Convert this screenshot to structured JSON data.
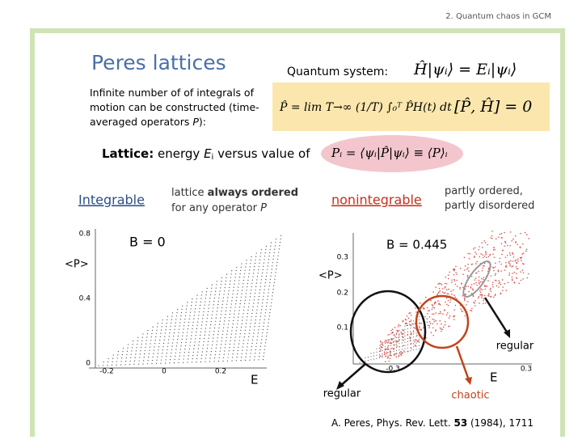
{
  "header": "2. Quantum chaos in GCM",
  "title": "Peres lattices",
  "quantum_system": {
    "label": "Quantum system:",
    "formula": "Ĥ|ψᵢ⟩ = Eᵢ|ψᵢ⟩"
  },
  "integrals": {
    "text": "Infinite number of of integrals of motion can be constructed (time-averaged operators",
    "operator": "P",
    "end": "):",
    "formula": "P̂ = lim T→∞ (1/T) ∫₀ᵀ P̂H(t) dt",
    "commutator": "[P̂, Ĥ] = 0"
  },
  "lattice": {
    "label": "Lattice:",
    "text": "energy",
    "energy": "E",
    "index": "i",
    "text2": "versus value of",
    "formula": "Pᵢ = ⟨ψᵢ|P̂|ψᵢ⟩ ≡ ⟨P⟩ᵢ"
  },
  "integrable": {
    "label": "Integrable",
    "text1": "lattice",
    "text2": "always ordered",
    "text3": "for any operator",
    "operator": "P"
  },
  "nonintegrable": {
    "label": "nonintegrable",
    "text": "partly ordered, partly disordered"
  },
  "left_plot": {
    "title": "B = 0",
    "ylabel": "<P>",
    "xlabel": "E",
    "yticks": [
      "0.8",
      "0.4",
      "0"
    ],
    "xticks": [
      "-0.2",
      "0",
      "0.2"
    ]
  },
  "right_plot": {
    "title": "B = 0.445",
    "ylabel": "<P>",
    "xlabel": "E",
    "yticks": [
      "0.3",
      "0.2",
      "0.1"
    ],
    "xticks": [
      "-0.3",
      "0.3"
    ],
    "annotations": [
      "regular",
      "chaotic",
      "regular"
    ]
  },
  "reference": {
    "authors": "A. Peres, Phys. Rev. Lett.",
    "volume": "53",
    "rest": "(1984), 1711"
  }
}
